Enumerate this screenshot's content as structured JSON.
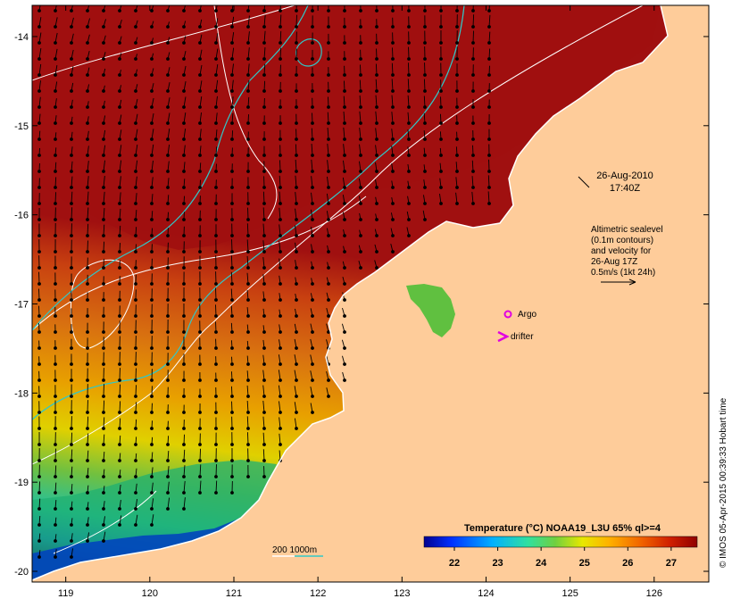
{
  "map": {
    "date": "26-Aug-2010",
    "time": "17:40Z",
    "altimetry_note": [
      "Altimetric sealevel",
      "(0.1m contours)",
      "and velocity for",
      "26-Aug 17Z",
      "0.5m/s (1kt 24h)"
    ],
    "markers": {
      "argo_label": "Argo",
      "drifter_label": "drifter",
      "argo_color": "#e000e0",
      "drifter_color": "#e000e0"
    },
    "depth_legend": "200  1000m",
    "credit": "© IMOS 05-Apr-2015 00:39:33 Hobart time",
    "x_ticks": [
      119,
      120,
      121,
      122,
      123,
      124,
      125,
      126
    ],
    "y_ticks": [
      -14,
      -15,
      -16,
      -17,
      -18,
      -19,
      -20
    ],
    "x_range": [
      118.6,
      126.65
    ],
    "y_range": [
      -20.12,
      -13.65
    ],
    "colors": {
      "land": "#fecc9a",
      "hot": "#a01010",
      "contour": "#ffffff",
      "isobath": "#30c8c8"
    }
  },
  "colorbar": {
    "title": "Temperature (°C) NOAA19_L3U 65% ql>=4",
    "range": [
      21.3,
      27.6
    ],
    "ticks": [
      22,
      23,
      24,
      25,
      26,
      27
    ]
  }
}
